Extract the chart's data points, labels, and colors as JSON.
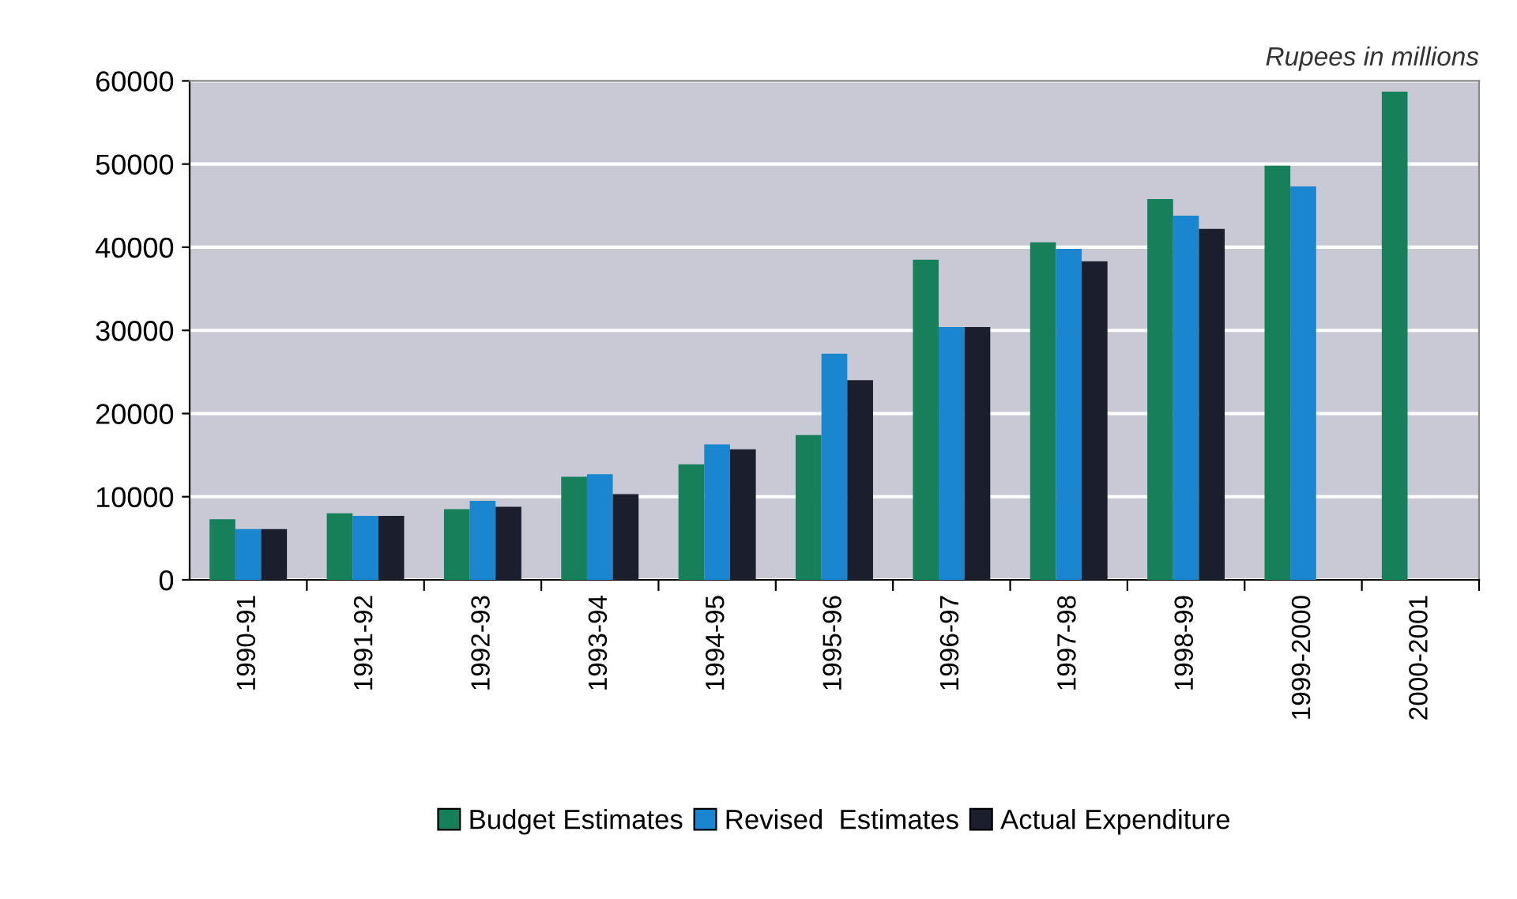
{
  "chart_data": {
    "type": "bar",
    "categories": [
      "1990-91",
      "1991-92",
      "1992-93",
      "1993-94",
      "1994-95",
      "1995-96",
      "1996-97",
      "1997-98",
      "1998-99",
      "1999-2000",
      "2000-2001"
    ],
    "series": [
      {
        "name": "Budget Estimates",
        "color": "#15805a",
        "values": [
          7300,
          8000,
          8500,
          12400,
          13900,
          17400,
          38500,
          40600,
          45800,
          49800,
          58700
        ]
      },
      {
        "name": "Revised  Estimates",
        "color": "#1a86d0",
        "values": [
          6100,
          7700,
          9500,
          12700,
          16300,
          27200,
          30400,
          39800,
          43800,
          47300,
          null
        ]
      },
      {
        "name": "Actual Expenditure",
        "color": "#1b1e2c",
        "values": [
          6100,
          7700,
          8800,
          10300,
          15700,
          24000,
          30400,
          38300,
          42200,
          null,
          null
        ]
      }
    ],
    "ylim": [
      0,
      60000
    ],
    "yticks": [
      0,
      10000,
      20000,
      30000,
      40000,
      50000,
      60000
    ],
    "grid": "y",
    "legend": "bottom",
    "annotations": [
      "Rupees in millions"
    ]
  }
}
